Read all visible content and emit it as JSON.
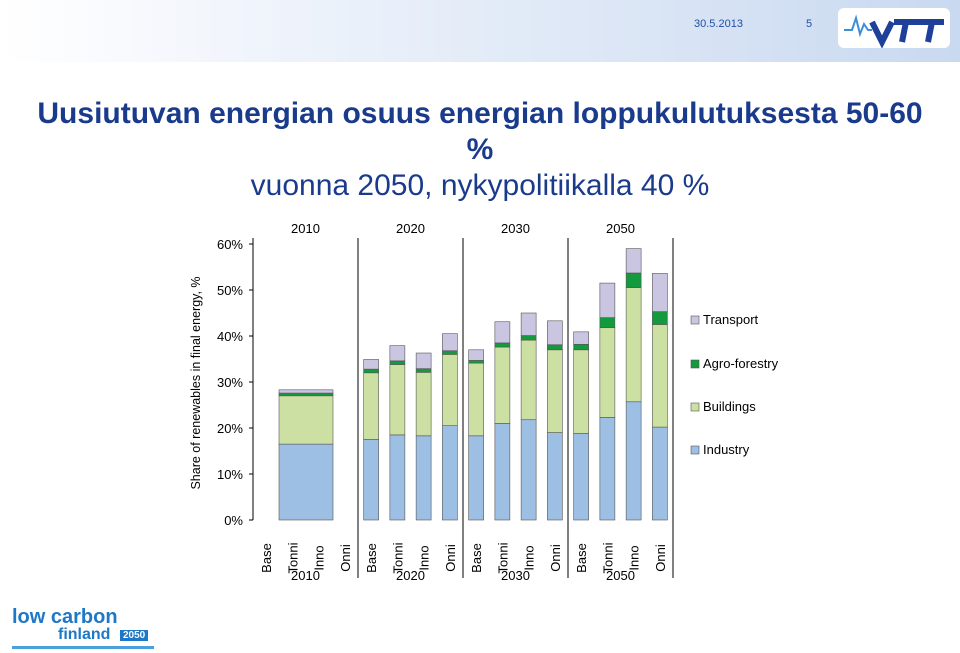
{
  "header": {
    "date": "30.5.2013",
    "page_number": "5",
    "logo_text": "VTT"
  },
  "title": {
    "line1": "Uusiutuvan energian osuus energian loppukulutuksesta 50-60 %",
    "line2": "vuonna 2050, nykypolitiikalla 40 %"
  },
  "footer": {
    "logo_line1": "low carbon",
    "logo_line2": "finland",
    "logo_year": "2050"
  },
  "chart_data": {
    "type": "bar",
    "stacked": true,
    "ylabel": "Share of renewables in final energy, %",
    "ylim": [
      0,
      60
    ],
    "yticks": [
      "0%",
      "10%",
      "20%",
      "30%",
      "40%",
      "50%",
      "60%"
    ],
    "grid": false,
    "legend_position": "right",
    "groups": [
      {
        "year": "2010",
        "categories": [
          "Base",
          "Tonni",
          "Inno",
          "Onni"
        ]
      },
      {
        "year": "2020",
        "categories": [
          "Base",
          "Tonni",
          "Inno",
          "Onni"
        ]
      },
      {
        "year": "2030",
        "categories": [
          "Base",
          "Tonni",
          "Inno",
          "Onni"
        ]
      },
      {
        "year": "2050",
        "categories": [
          "Base",
          "Tonni",
          "Inno",
          "Onni"
        ]
      }
    ],
    "series": [
      {
        "name": "Industry",
        "color": "#9cbfe3",
        "values": [
          16.5,
          null,
          null,
          null,
          17.5,
          18.5,
          18.3,
          20.5,
          18.3,
          21,
          21.8,
          19,
          18.8,
          22.3,
          25.7,
          20.2
        ]
      },
      {
        "name": "Buildings",
        "color": "#cde0a3",
        "values": [
          10.5,
          null,
          null,
          null,
          14.5,
          15.3,
          13.8,
          15.5,
          15.8,
          16.6,
          17.3,
          18,
          18.2,
          19.5,
          24.8,
          22.3
        ]
      },
      {
        "name": "Agro-forestry",
        "color": "#129a3c",
        "values": [
          0.6,
          null,
          null,
          null,
          0.8,
          0.8,
          0.8,
          0.8,
          0.6,
          0.9,
          1.0,
          1.1,
          1.2,
          2.2,
          3.2,
          2.8
        ]
      },
      {
        "name": "Transport",
        "color": "#cac6e2",
        "values": [
          0.7,
          null,
          null,
          null,
          2.1,
          3.3,
          3.4,
          3.7,
          2.3,
          4.6,
          4.9,
          5.2,
          2.7,
          7.5,
          5.3,
          8.3
        ]
      }
    ]
  }
}
